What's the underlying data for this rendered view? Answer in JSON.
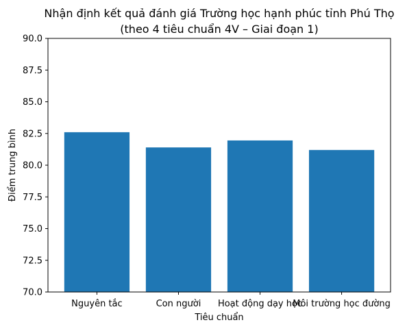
{
  "chart_data": {
    "type": "bar",
    "title_line1": "Nhận định kết quả đánh giá Trường học hạnh phúc tỉnh Phú Thọ",
    "title_line2": "(theo 4 tiêu chuẩn 4V – Giai đoạn 1)",
    "xlabel": "Tiêu chuẩn",
    "ylabel": "Điểm trung bình",
    "categories": [
      "Nguyên tắc",
      "Con người",
      "Hoạt động dạy học",
      "Môi trường học đường"
    ],
    "values": [
      82.6,
      81.4,
      81.95,
      81.2
    ],
    "ylim": [
      70,
      90
    ],
    "yticks": [
      "70.0",
      "72.5",
      "75.0",
      "77.5",
      "80.0",
      "82.5",
      "85.0",
      "87.5",
      "90.0"
    ],
    "grid": false,
    "bar_color": "#1f77b4"
  }
}
